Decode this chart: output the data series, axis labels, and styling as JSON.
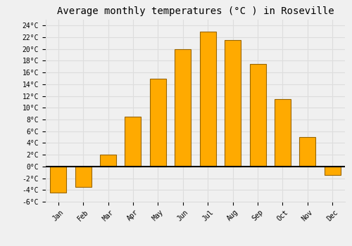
{
  "title": "Average monthly temperatures (°C ) in Roseville",
  "months": [
    "Jan",
    "Feb",
    "Mar",
    "Apr",
    "May",
    "Jun",
    "Jul",
    "Aug",
    "Sep",
    "Oct",
    "Nov",
    "Dec"
  ],
  "values": [
    -4.5,
    -3.5,
    2.0,
    8.5,
    15.0,
    20.0,
    23.0,
    21.5,
    17.5,
    11.5,
    5.0,
    -1.5
  ],
  "bar_color": "#FFAA00",
  "bar_edge_color": "#996600",
  "ylim": [
    -6,
    25
  ],
  "yticks": [
    -6,
    -4,
    -2,
    0,
    2,
    4,
    6,
    8,
    10,
    12,
    14,
    16,
    18,
    20,
    22,
    24
  ],
  "ytick_labels": [
    "-6°C",
    "-4°C",
    "-2°C",
    "0°C",
    "2°C",
    "4°C",
    "6°C",
    "8°C",
    "10°C",
    "12°C",
    "14°C",
    "16°C",
    "18°C",
    "20°C",
    "22°C",
    "24°C"
  ],
  "background_color": "#f0f0f0",
  "grid_color": "#dddddd",
  "title_fontsize": 10,
  "tick_fontsize": 7,
  "bar_width": 0.65
}
